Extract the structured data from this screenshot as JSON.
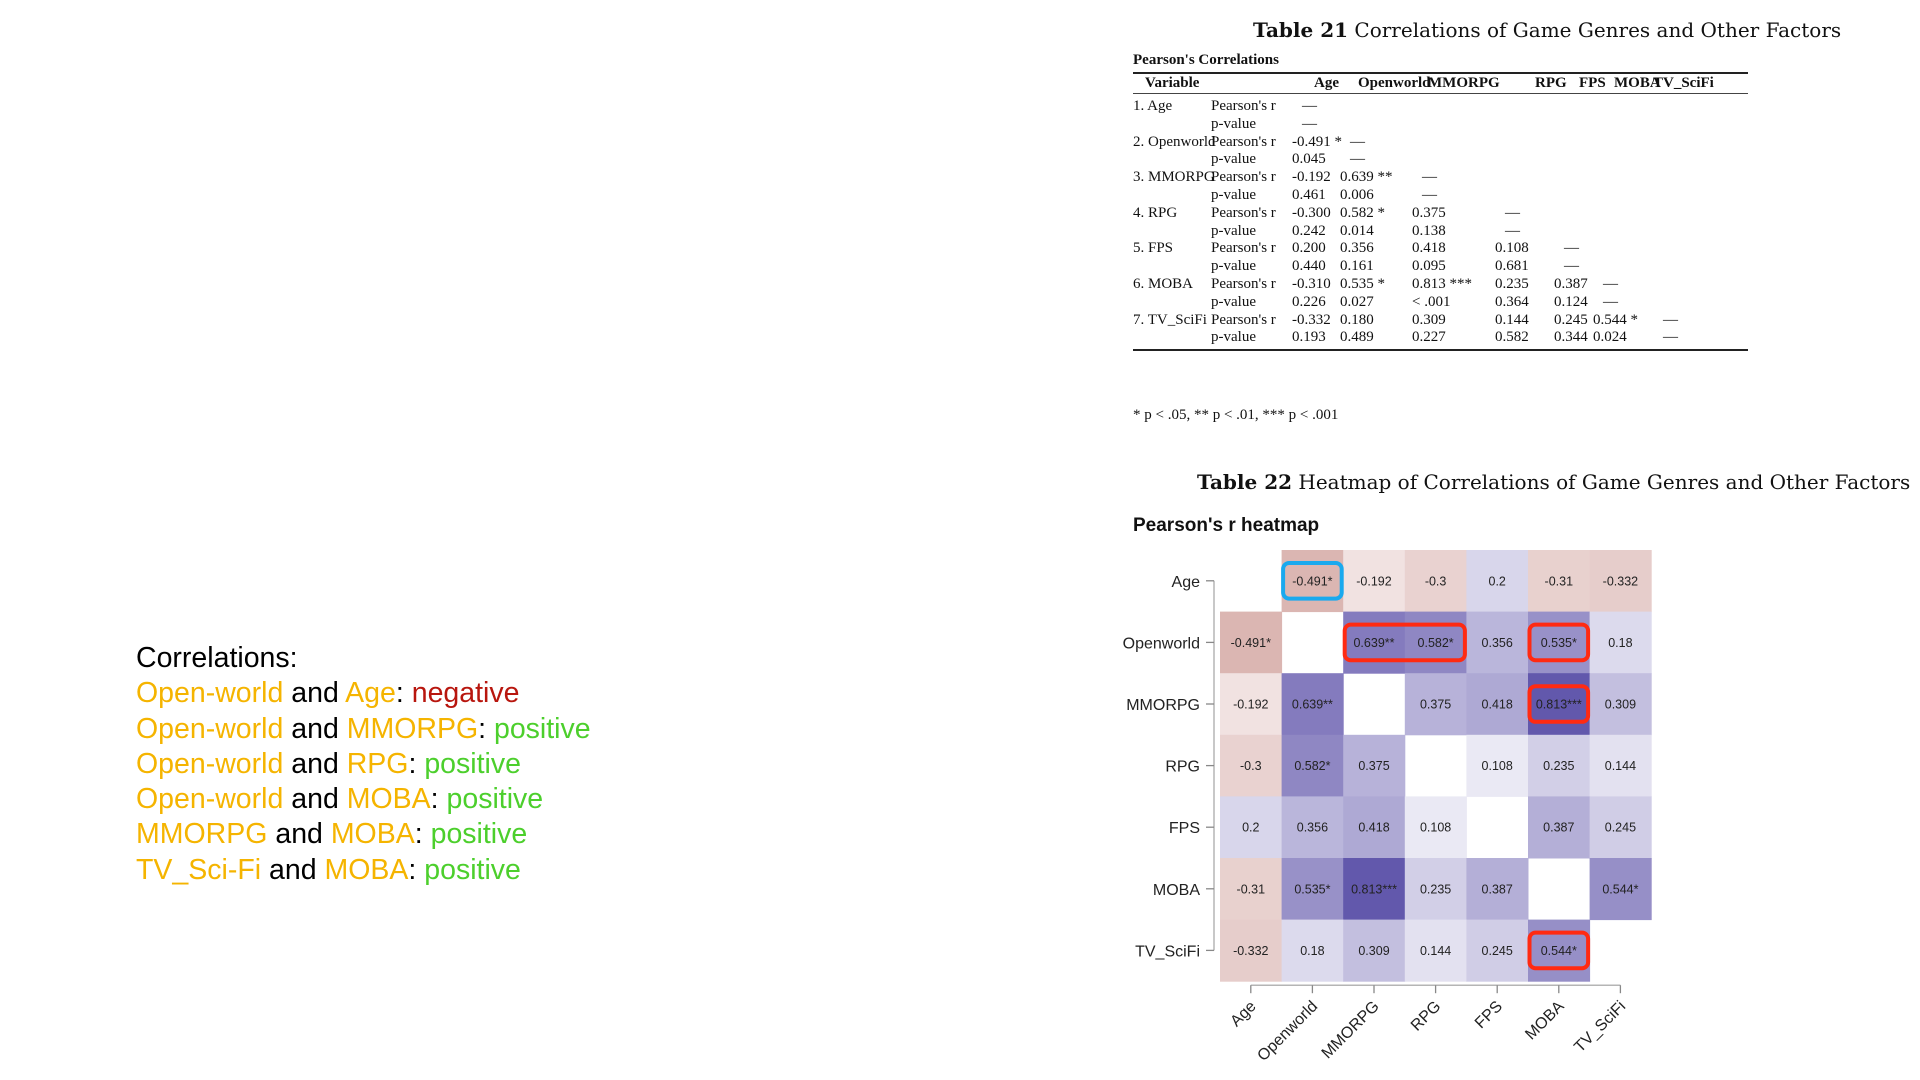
{
  "notes": {
    "heading": "Correlations:",
    "items": [
      {
        "a": "Open-world",
        "and": " and ",
        "b": "Age",
        "colon": ": ",
        "sign": "negative",
        "type": "neg"
      },
      {
        "a": "Open-world",
        "and": " and ",
        "b": "MMORPG",
        "colon": ": ",
        "sign": "positive",
        "type": "pos"
      },
      {
        "a": "Open-world",
        "and": " and ",
        "b": "RPG",
        "colon": ": ",
        "sign": "positive",
        "type": "pos"
      },
      {
        "a": "Open-world",
        "and": " and ",
        "b": "MOBA",
        "colon": ": ",
        "sign": "positive",
        "type": "pos"
      },
      {
        "a": "MMORPG",
        "and": " and ",
        "b": "MOBA",
        "colon": ": ",
        "sign": "positive",
        "type": "pos"
      },
      {
        "a": "TV_Sci-Fi",
        "and": " and ",
        "b": "MOBA",
        "colon": ": ",
        "sign": "positive",
        "type": "pos"
      }
    ],
    "colors": {
      "keyword": "#f5b400",
      "negative": "#b8160e",
      "positive": "#4ccf2c"
    }
  },
  "table21": {
    "caption_bold": "Table 21",
    "caption_rest": " Correlations of Game Genres and Other Factors",
    "subtitle": "Pearson's Correlations",
    "headers": [
      "Variable",
      "",
      "Age",
      "Openworld",
      "MMORPG",
      "RPG",
      "FPS",
      "MOBA",
      "TV_SciFi"
    ],
    "rows": [
      {
        "var": "1. Age",
        "stat": "Pearson's r",
        "vals": [
          "—"
        ]
      },
      {
        "var": "",
        "stat": "p-value",
        "vals": [
          "—"
        ]
      },
      {
        "var": "2. Openworld",
        "stat": "Pearson's r",
        "vals": [
          "-0.491 *",
          "—"
        ]
      },
      {
        "var": "",
        "stat": "p-value",
        "vals": [
          "0.045",
          "—"
        ]
      },
      {
        "var": "3. MMORPG",
        "stat": "Pearson's r",
        "vals": [
          "-0.192",
          "0.639 **",
          "—"
        ]
      },
      {
        "var": "",
        "stat": "p-value",
        "vals": [
          "0.461",
          "0.006",
          "—"
        ]
      },
      {
        "var": "4. RPG",
        "stat": "Pearson's r",
        "vals": [
          "-0.300",
          "0.582 *",
          "0.375",
          "—"
        ]
      },
      {
        "var": "",
        "stat": "p-value",
        "vals": [
          "0.242",
          "0.014",
          "0.138",
          "—"
        ]
      },
      {
        "var": "5. FPS",
        "stat": "Pearson's r",
        "vals": [
          "0.200",
          "0.356",
          "0.418",
          "0.108",
          "—"
        ]
      },
      {
        "var": "",
        "stat": "p-value",
        "vals": [
          "0.440",
          "0.161",
          "0.095",
          "0.681",
          "—"
        ]
      },
      {
        "var": "6. MOBA",
        "stat": "Pearson's r",
        "vals": [
          "-0.310",
          "0.535 *",
          "0.813 ***",
          "0.235",
          "0.387",
          "—"
        ]
      },
      {
        "var": "",
        "stat": "p-value",
        "vals": [
          "0.226",
          "0.027",
          "< .001",
          "0.364",
          "0.124",
          "—"
        ]
      },
      {
        "var": "7. TV_SciFi",
        "stat": "Pearson's r",
        "vals": [
          "-0.332",
          "0.180",
          "0.309",
          "0.144",
          "0.245",
          "0.544 *",
          "—"
        ]
      },
      {
        "var": "",
        "stat": "p-value",
        "vals": [
          "0.193",
          "0.489",
          "0.227",
          "0.582",
          "0.344",
          "0.024",
          "—"
        ]
      }
    ],
    "footnote": "* p < .05, ** p < .01, *** p < .001"
  },
  "table22": {
    "caption_bold": "Table 22",
    "caption_rest": " Heatmap of Correlations of Game Genres and Other Factors",
    "title": "Pearson's r heatmap"
  },
  "chart_data": {
    "type": "heatmap",
    "title": "Pearson's r heatmap",
    "xlabel": "",
    "ylabel": "",
    "variables": [
      "Age",
      "Openworld",
      "MMORPG",
      "RPG",
      "FPS",
      "MOBA",
      "TV_SciFi"
    ],
    "matrix": [
      [
        null,
        -0.491,
        -0.192,
        -0.3,
        0.2,
        -0.31,
        -0.332
      ],
      [
        -0.491,
        null,
        0.639,
        0.582,
        0.356,
        0.535,
        0.18
      ],
      [
        -0.192,
        0.639,
        null,
        0.375,
        0.418,
        0.813,
        0.309
      ],
      [
        -0.3,
        0.582,
        0.375,
        null,
        0.108,
        0.235,
        0.144
      ],
      [
        0.2,
        0.356,
        0.418,
        0.108,
        null,
        0.387,
        0.245
      ],
      [
        -0.31,
        0.535,
        0.813,
        0.235,
        0.387,
        null,
        0.544
      ],
      [
        -0.332,
        0.18,
        0.309,
        0.144,
        0.245,
        0.544,
        null
      ]
    ],
    "labels": [
      [
        null,
        "-0.491*",
        "-0.192",
        "-0.3",
        "0.2",
        "-0.31",
        "-0.332"
      ],
      [
        "-0.491*",
        null,
        "0.639**",
        "0.582*",
        "0.356",
        "0.535*",
        "0.18"
      ],
      [
        "-0.192",
        "0.639**",
        null,
        "0.375",
        "0.418",
        "0.813***",
        "0.309"
      ],
      [
        "-0.3",
        "0.582*",
        "0.375",
        null,
        "0.108",
        "0.235",
        "0.144"
      ],
      [
        "0.2",
        "0.356",
        "0.418",
        "0.108",
        null,
        "0.387",
        "0.245"
      ],
      [
        "-0.31",
        "0.535*",
        "0.813***",
        "0.235",
        "0.387",
        null,
        "0.544*"
      ],
      [
        "-0.332",
        "0.18",
        "0.309",
        "0.144",
        "0.245",
        "0.544*",
        null
      ]
    ],
    "color_scale": {
      "negative": "#c0807a",
      "zero": "#ffffff",
      "positive": "#5b50a8"
    },
    "highlights": [
      {
        "color": "#1aa9ee",
        "row": 0,
        "col_start": 1,
        "col_end": 1
      },
      {
        "color": "#ff2a12",
        "row": 1,
        "col_start": 2,
        "col_end": 3
      },
      {
        "color": "#ff2a12",
        "row": 1,
        "col_start": 5,
        "col_end": 5
      },
      {
        "color": "#ff2a12",
        "row": 2,
        "col_start": 5,
        "col_end": 5
      },
      {
        "color": "#ff2a12",
        "row": 6,
        "col_start": 5,
        "col_end": 5
      }
    ]
  }
}
